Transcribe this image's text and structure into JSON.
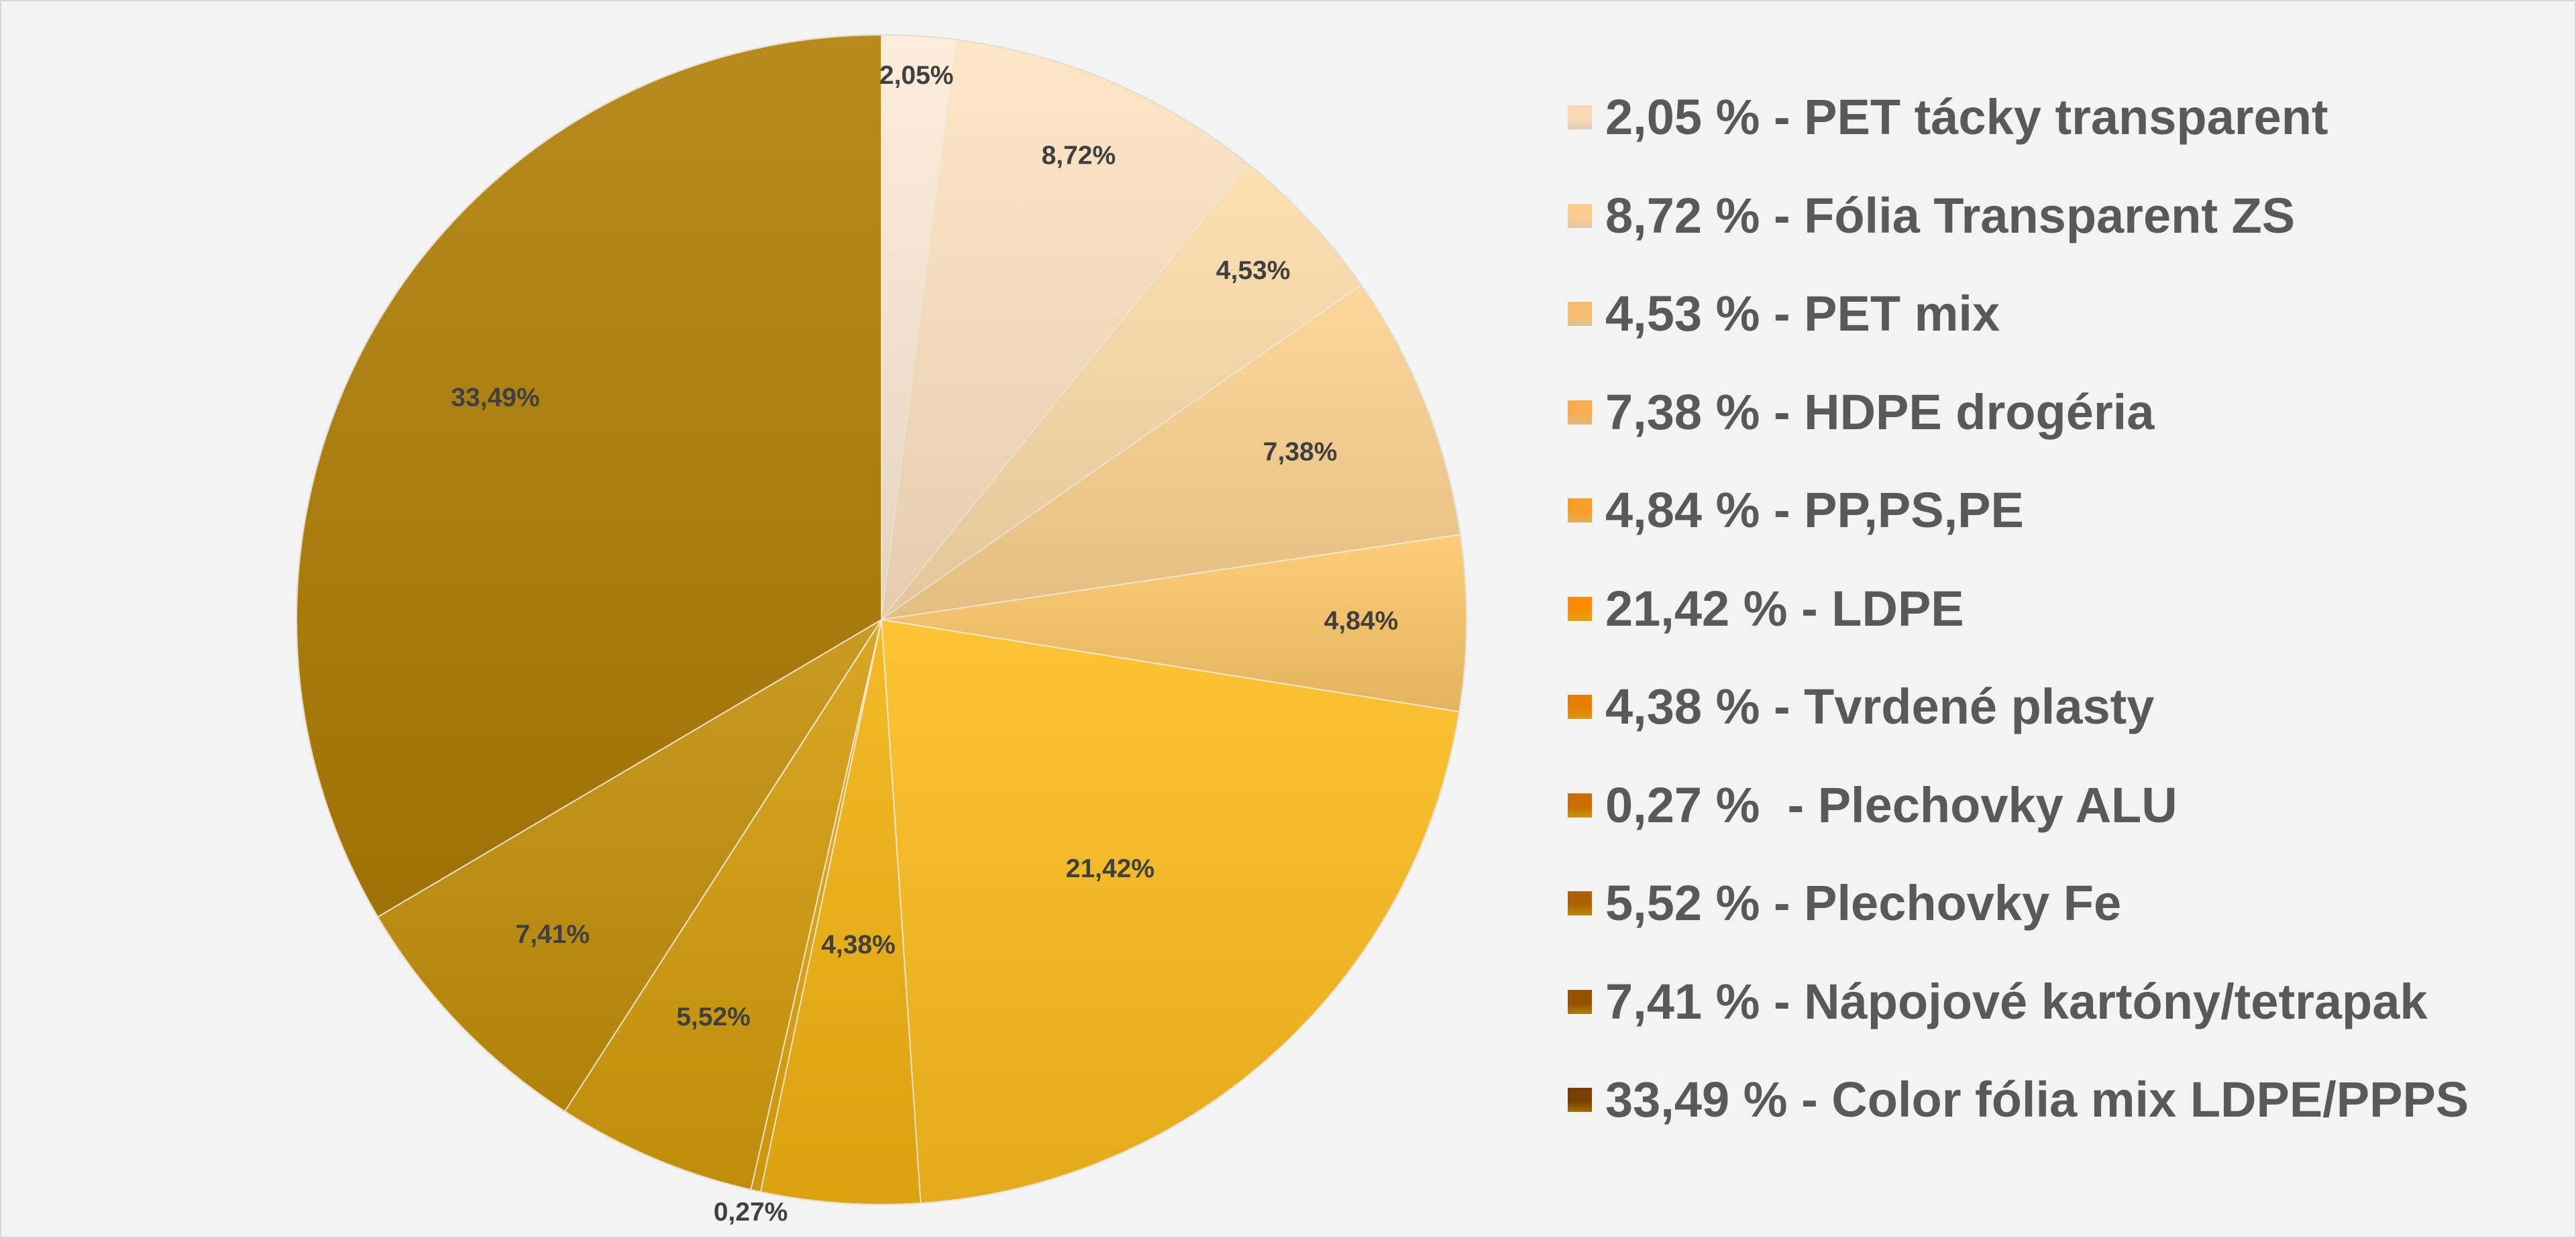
{
  "chart_data": {
    "type": "pie",
    "title": "",
    "start_angle_deg": 0,
    "direction": "clockwise",
    "slices": [
      {
        "label": "PET tácky transparent",
        "value": 2.05,
        "data_label": "2,05%",
        "legend": "2,05 % - PET tácky transparent",
        "color": "#fdebd6"
      },
      {
        "label": "Fólia Transparent ZS",
        "value": 8.72,
        "data_label": "8,72%",
        "legend": "8,72 % - Fólia Transparent ZS",
        "color": "#fde4c0"
      },
      {
        "label": "PET mix",
        "value": 4.53,
        "data_label": "4,53%",
        "legend": "4,53 % - PET mix",
        "color": "#fcdcaa"
      },
      {
        "label": "HDPE drogéria",
        "value": 7.38,
        "data_label": "7,38%",
        "legend": "7,38 % - HDPE drogéria",
        "color": "#fcd28f"
      },
      {
        "label": "PP,PS,PE",
        "value": 4.84,
        "data_label": "4,84%",
        "legend": "4,84 % - PP,PS,PE",
        "color": "#fcc867"
      },
      {
        "label": "LDPE",
        "value": 21.42,
        "data_label": "21,42%",
        "legend": "21,42 % - LDPE",
        "color": "#fcbd1c"
      },
      {
        "label": "Tvrdené plasty",
        "value": 4.38,
        "data_label": "4,38%",
        "legend": "4,38 % - Tvrdené plasty",
        "color": "#f3b311"
      },
      {
        "label": "Plechovky ALU",
        "value": 0.27,
        "data_label": "0,27%",
        "legend": "0,27 %  - Plechovky ALU",
        "color": "#e3a70d"
      },
      {
        "label": "Plechovky Fe",
        "value": 5.52,
        "data_label": "5,52%",
        "legend": "5,52 % - Plechovky Fe",
        "color": "#d39d0c"
      },
      {
        "label": "Nápojové kartóny/tetrapak",
        "value": 7.41,
        "data_label": "7,41%",
        "legend": "7,41 % - Nápojové kartóny/tetrapak",
        "color": "#c3900a"
      },
      {
        "label": "Color fólia mix LDPE/PPPS",
        "value": 33.49,
        "data_label": "33,49%",
        "legend": "33,49 % - Color fólia mix LDPE/PPPS",
        "color": "#b07e05"
      }
    ],
    "legend_position": "right"
  }
}
